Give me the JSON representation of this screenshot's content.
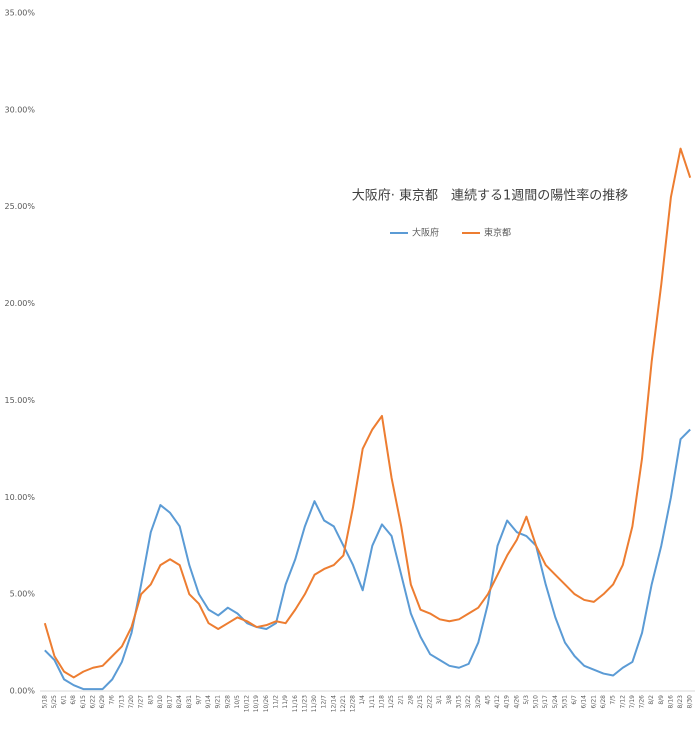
{
  "chart_data": {
    "type": "line",
    "title": "大阪府· 東京都　連続する1週間の陽性率の推移",
    "categories": [
      "5/18",
      "5/25",
      "6/1",
      "6/8",
      "6/15",
      "6/22",
      "6/29",
      "7/6",
      "7/13",
      "7/20",
      "7/27",
      "8/3",
      "8/10",
      "8/17",
      "8/24",
      "8/31",
      "9/7",
      "9/14",
      "9/21",
      "9/28",
      "10/5",
      "10/12",
      "10/19",
      "10/26",
      "11/2",
      "11/9",
      "11/16",
      "11/23",
      "11/30",
      "12/7",
      "12/14",
      "12/21",
      "12/28",
      "1/4",
      "1/11",
      "1/18",
      "1/25",
      "2/1",
      "2/8",
      "2/15",
      "2/22",
      "3/1",
      "3/8",
      "3/15",
      "3/22",
      "3/29",
      "4/5",
      "4/12",
      "4/19",
      "4/26",
      "5/3",
      "5/10",
      "5/17",
      "5/24",
      "5/31",
      "6/7",
      "6/14",
      "6/21",
      "6/28",
      "7/5",
      "7/12",
      "7/19",
      "7/26",
      "8/2",
      "8/9",
      "8/16",
      "8/23",
      "8/30"
    ],
    "series": [
      {
        "name": "大阪府",
        "color": "#5b9bd5",
        "values": [
          2.1,
          1.6,
          0.6,
          0.3,
          0.1,
          0.1,
          0.1,
          0.6,
          1.5,
          3,
          5.5,
          8.2,
          9.6,
          9.2,
          8.5,
          6.5,
          5,
          4.2,
          3.9,
          4.3,
          4,
          3.5,
          3.3,
          3.2,
          3.5,
          5.5,
          6.8,
          8.5,
          9.8,
          8.8,
          8.5,
          7.5,
          6.5,
          5.2,
          7.5,
          8.6,
          8,
          6,
          4,
          2.8,
          1.9,
          1.6,
          1.3,
          1.2,
          1.4,
          2.5,
          4.5,
          7.5,
          8.8,
          8.2,
          8,
          7.5,
          5.5,
          3.8,
          2.5,
          1.8,
          1.3,
          1.1,
          0.9,
          0.8,
          1.2,
          1.5,
          3,
          5.5,
          7.5,
          10,
          13,
          13.5
        ]
      },
      {
        "name": "東京都",
        "color": "#ed7d31",
        "values": [
          3.5,
          1.8,
          1.0,
          0.7,
          1.0,
          1.2,
          1.3,
          1.8,
          2.3,
          3.3,
          5.0,
          5.5,
          6.5,
          6.8,
          6.5,
          5.0,
          4.5,
          3.5,
          3.2,
          3.5,
          3.8,
          3.6,
          3.3,
          3.4,
          3.6,
          3.5,
          4.2,
          5.0,
          6.0,
          6.3,
          6.5,
          7.0,
          9.5,
          12.5,
          13.5,
          14.2,
          11,
          8.5,
          5.5,
          4.2,
          4.0,
          3.7,
          3.6,
          3.7,
          4.0,
          4.3,
          5.0,
          6.0,
          7.0,
          7.8,
          9.0,
          7.5,
          6.5,
          6.0,
          5.5,
          5.0,
          4.7,
          4.6,
          5.0,
          5.5,
          6.5,
          8.5,
          12,
          17,
          21,
          25.5,
          28,
          26.5
        ]
      }
    ],
    "ylim": [
      0,
      35
    ],
    "yticks": [
      {
        "value": 0,
        "label": "0.00%"
      },
      {
        "value": 5,
        "label": "5.00%"
      },
      {
        "value": 10,
        "label": "10.00%"
      },
      {
        "value": 15,
        "label": "15.00%"
      },
      {
        "value": 20,
        "label": "20.00%"
      },
      {
        "value": 25,
        "label": "25.00%"
      },
      {
        "value": 30,
        "label": "30.00%"
      },
      {
        "value": 35,
        "label": "35.00%"
      }
    ],
    "grid": false
  }
}
